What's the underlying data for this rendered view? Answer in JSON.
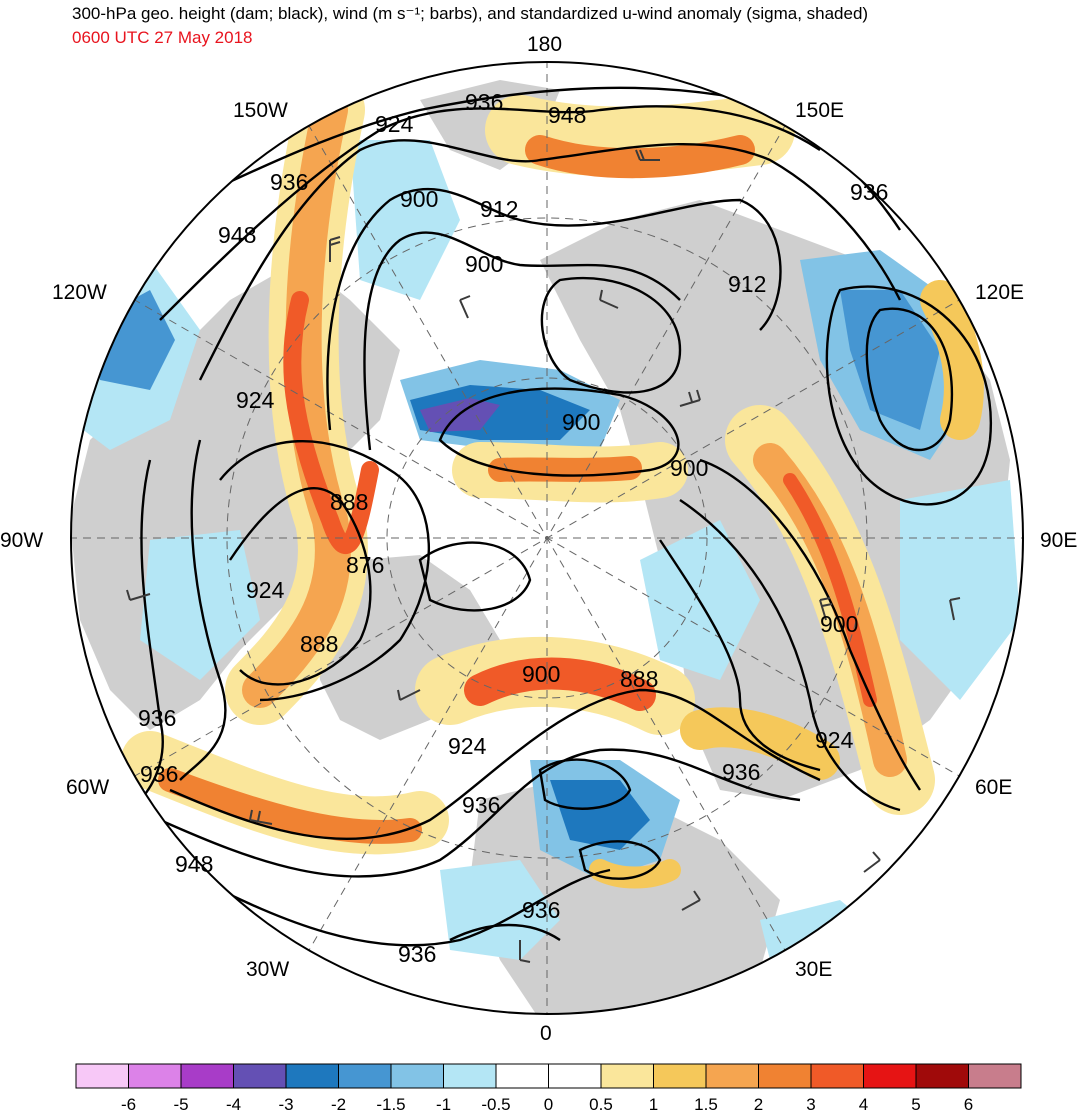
{
  "title": "300-hPa geo. height (dam; black), wind (m s⁻¹; barbs), and standardized u-wind anomaly (sigma, shaded)",
  "subtitle": "0600 UTC 27 May 2018",
  "colors": {
    "subtitle": "#e8141e",
    "land": "#cfcfcf",
    "ocean": "#ffffff",
    "contour": "#000000",
    "barb": "#3a3a3a"
  },
  "longitude_labels": [
    "180",
    "150E",
    "120E",
    "90E",
    "60E",
    "30E",
    "0",
    "30W",
    "60W",
    "90W",
    "120W",
    "150W"
  ],
  "contour_labels": [
    "936",
    "948",
    "924",
    "936",
    "900",
    "912",
    "900",
    "948",
    "936",
    "912",
    "924",
    "900",
    "900",
    "888",
    "876",
    "924",
    "888",
    "900",
    "888",
    "924",
    "936",
    "936",
    "936",
    "924",
    "948",
    "936",
    "936",
    "900"
  ],
  "colorbar": {
    "colors": [
      "#f7c8f7",
      "#dc82e8",
      "#a83cc8",
      "#6450b4",
      "#1e78be",
      "#4696d2",
      "#82c3e6",
      "#b4e6f5",
      "#ffffff",
      "#ffffff",
      "#fae69b",
      "#f5c85a",
      "#f5a550",
      "#f08232",
      "#f05a28",
      "#e61414",
      "#a00a0a",
      "#c87d8c"
    ],
    "tick_labels": [
      "-6",
      "-5",
      "-4",
      "-3",
      "-2",
      "-1.5",
      "-1",
      "-0.5",
      "0",
      "0.5",
      "1",
      "1.5",
      "2",
      "3",
      "4",
      "5",
      "6"
    ]
  }
}
